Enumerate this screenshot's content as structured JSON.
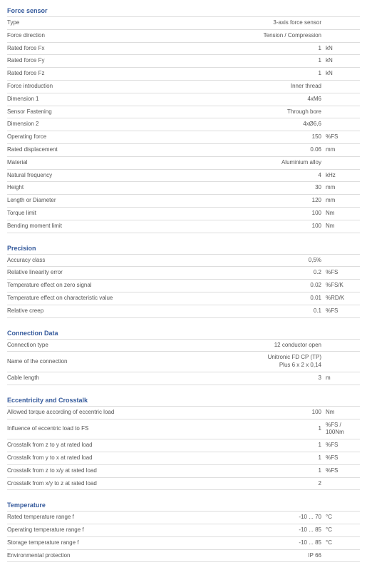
{
  "sections": [
    {
      "title": "Force sensor",
      "rows": [
        {
          "label": "Type",
          "value": "3-axis force sensor",
          "unit": ""
        },
        {
          "label": "Force direction",
          "value": "Tension / Compression",
          "unit": ""
        },
        {
          "label": "Rated force Fx",
          "value": "1",
          "unit": "kN"
        },
        {
          "label": "Rated force Fy",
          "value": "1",
          "unit": "kN"
        },
        {
          "label": "Rated force Fz",
          "value": "1",
          "unit": "kN"
        },
        {
          "label": "Force introduction",
          "value": "Inner thread",
          "unit": ""
        },
        {
          "label": "Dimension 1",
          "value": "4xM6",
          "unit": ""
        },
        {
          "label": "Sensor Fastening",
          "value": "Through bore",
          "unit": ""
        },
        {
          "label": "Dimension 2",
          "value": "4xØ6,6",
          "unit": ""
        },
        {
          "label": "Operating force",
          "value": "150",
          "unit": "%FS"
        },
        {
          "label": "Rated displacement",
          "value": "0.06",
          "unit": "mm"
        },
        {
          "label": "Material",
          "value": "Aluminium alloy",
          "unit": ""
        },
        {
          "label": "Natural frequency",
          "value": "4",
          "unit": "kHz"
        },
        {
          "label": "Height",
          "value": "30",
          "unit": "mm"
        },
        {
          "label": "Length or Diameter",
          "value": "120",
          "unit": "mm"
        },
        {
          "label": "Torque limit",
          "value": "100",
          "unit": "Nm"
        },
        {
          "label": "Bending moment limit",
          "value": "100",
          "unit": "Nm"
        }
      ]
    },
    {
      "title": "Precision",
      "rows": [
        {
          "label": "Accuracy class",
          "value": "0,5%",
          "unit": ""
        },
        {
          "label": "Relative linearity error",
          "value": "0.2",
          "unit": "%FS"
        },
        {
          "label": "Temperature effect on zero signal",
          "value": "0.02",
          "unit": "%FS/K"
        },
        {
          "label": "Temperature effect on characteristic value",
          "value": "0.01",
          "unit": "%RD/K"
        },
        {
          "label": "Relative creep",
          "value": "0.1",
          "unit": "%FS"
        }
      ]
    },
    {
      "title": "Connection Data",
      "rows": [
        {
          "label": "Connection type",
          "value": "12 conductor open",
          "unit": ""
        },
        {
          "label": "Name of the connection",
          "value": "Unitronic FD CP (TP) Plus 6 x 2 x 0,14",
          "unit": ""
        },
        {
          "label": "Cable length",
          "value": "3",
          "unit": "m"
        }
      ]
    },
    {
      "title": "Eccentricity and Crosstalk",
      "rows": [
        {
          "label": "Allowed torque according of eccentric load",
          "value": "100",
          "unit": "Nm"
        },
        {
          "label": "Influence of eccentric load to FS",
          "value": "1",
          "unit": "%FS / 100Nm"
        },
        {
          "label": "Crosstalk from z to y at rated load",
          "value": "1",
          "unit": "%FS"
        },
        {
          "label": "Crosstalk from y to x at rated load",
          "value": "1",
          "unit": "%FS"
        },
        {
          "label": "Crosstalk from z to x/y at rated load",
          "value": "1",
          "unit": "%FS"
        },
        {
          "label": "Crosstalk from x/y to z at rated load",
          "value": "2",
          "unit": ""
        }
      ]
    },
    {
      "title": "Temperature",
      "rows": [
        {
          "label": "Rated temperature range f",
          "value": "-10 ... 70",
          "unit": "°C"
        },
        {
          "label": "Operating temperature range f",
          "value": "-10 ... 85",
          "unit": "°C"
        },
        {
          "label": "Storage temperature range f",
          "value": "-10 ... 85",
          "unit": "°C"
        },
        {
          "label": "Environmental protection",
          "value": "IP 66",
          "unit": ""
        }
      ]
    }
  ]
}
